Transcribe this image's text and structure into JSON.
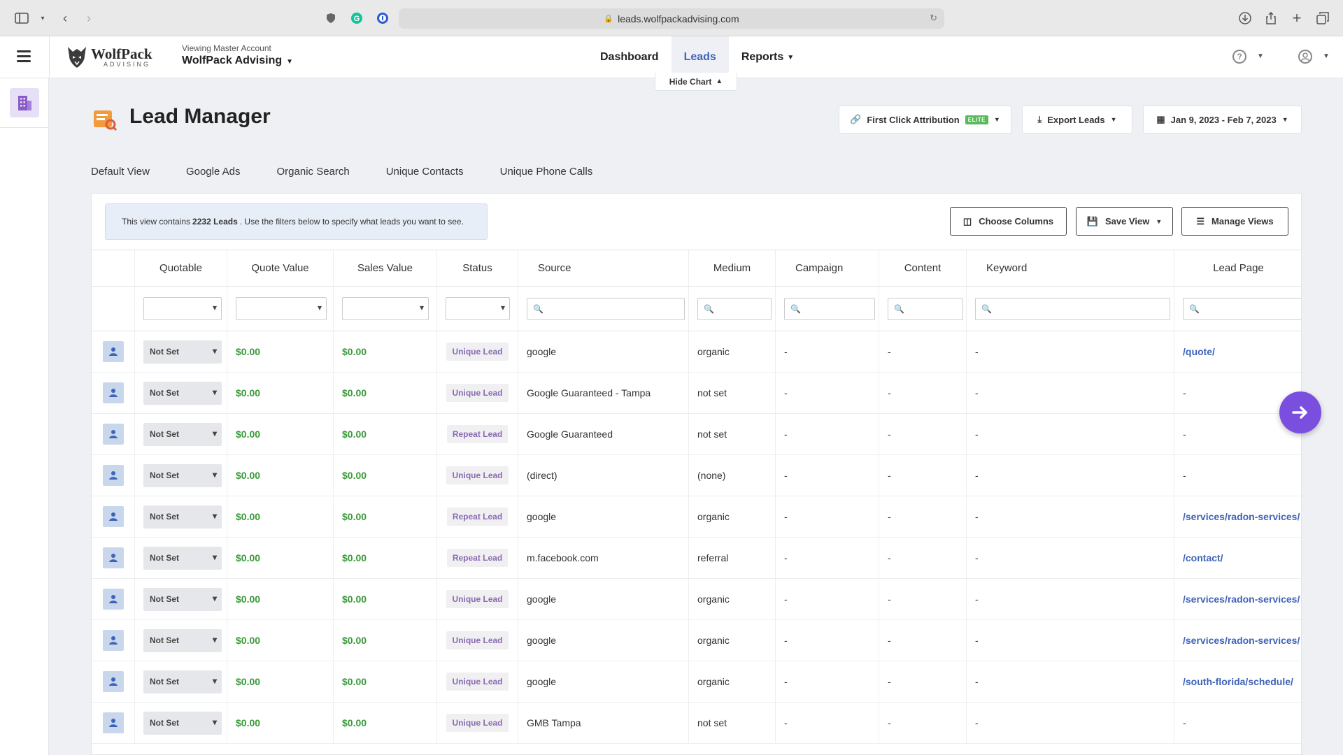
{
  "browser": {
    "url": "leads.wolfpackadvising.com"
  },
  "header": {
    "logo_primary": "WolfPack",
    "logo_secondary": "ADVISING",
    "account_label": "Viewing Master Account",
    "account_name": "WolfPack Advising",
    "nav": [
      {
        "label": "Dashboard",
        "active": false
      },
      {
        "label": "Leads",
        "active": true
      },
      {
        "label": "Reports",
        "active": false
      }
    ],
    "help_symbol": "?"
  },
  "hide_chart_label": "Hide Chart",
  "page_title": "Lead Manager",
  "toolbar": {
    "attribution_label": "First Click Attribution",
    "attribution_badge": "ELITE",
    "export_label": "Export Leads",
    "date_range": "Jan 9, 2023 - Feb 7, 2023"
  },
  "view_tabs": [
    "Default View",
    "Google Ads",
    "Organic Search",
    "Unique Contacts",
    "Unique Phone Calls"
  ],
  "info": {
    "prefix": "This view contains",
    "count": "2232 Leads",
    "suffix": ". Use the filters below to specify what leads you want to see."
  },
  "panel_buttons": {
    "choose_columns": "Choose Columns",
    "save_view": "Save View",
    "manage_views": "Manage Views"
  },
  "table": {
    "columns": [
      "Quotable",
      "Quote Value",
      "Sales Value",
      "Status",
      "Source",
      "Medium",
      "Campaign",
      "Content",
      "Keyword",
      "Lead Page"
    ],
    "rows": [
      {
        "quotable": "Not Set",
        "quote_value": "$0.00",
        "sales_value": "$0.00",
        "status": "Unique Lead",
        "source": "google",
        "medium": "organic",
        "campaign": "-",
        "content": "-",
        "keyword": "-",
        "lead_page": "/quote/"
      },
      {
        "quotable": "Not Set",
        "quote_value": "$0.00",
        "sales_value": "$0.00",
        "status": "Unique Lead",
        "source": "Google Guaranteed - Tampa",
        "medium": "not set",
        "campaign": "-",
        "content": "-",
        "keyword": "-",
        "lead_page": "-"
      },
      {
        "quotable": "Not Set",
        "quote_value": "$0.00",
        "sales_value": "$0.00",
        "status": "Repeat Lead",
        "source": "Google Guaranteed",
        "medium": "not set",
        "campaign": "-",
        "content": "-",
        "keyword": "-",
        "lead_page": "-"
      },
      {
        "quotable": "Not Set",
        "quote_value": "$0.00",
        "sales_value": "$0.00",
        "status": "Unique Lead",
        "source": "(direct)",
        "medium": "(none)",
        "campaign": "-",
        "content": "-",
        "keyword": "-",
        "lead_page": "-"
      },
      {
        "quotable": "Not Set",
        "quote_value": "$0.00",
        "sales_value": "$0.00",
        "status": "Repeat Lead",
        "source": "google",
        "medium": "organic",
        "campaign": "-",
        "content": "-",
        "keyword": "-",
        "lead_page": "/services/radon-services/"
      },
      {
        "quotable": "Not Set",
        "quote_value": "$0.00",
        "sales_value": "$0.00",
        "status": "Repeat Lead",
        "source": "m.facebook.com",
        "medium": "referral",
        "campaign": "-",
        "content": "-",
        "keyword": "-",
        "lead_page": "/contact/"
      },
      {
        "quotable": "Not Set",
        "quote_value": "$0.00",
        "sales_value": "$0.00",
        "status": "Unique Lead",
        "source": "google",
        "medium": "organic",
        "campaign": "-",
        "content": "-",
        "keyword": "-",
        "lead_page": "/services/radon-services/"
      },
      {
        "quotable": "Not Set",
        "quote_value": "$0.00",
        "sales_value": "$0.00",
        "status": "Unique Lead",
        "source": "google",
        "medium": "organic",
        "campaign": "-",
        "content": "-",
        "keyword": "-",
        "lead_page": "/services/radon-services/"
      },
      {
        "quotable": "Not Set",
        "quote_value": "$0.00",
        "sales_value": "$0.00",
        "status": "Unique Lead",
        "source": "google",
        "medium": "organic",
        "campaign": "-",
        "content": "-",
        "keyword": "-",
        "lead_page": "/south-florida/schedule/"
      },
      {
        "quotable": "Not Set",
        "quote_value": "$0.00",
        "sales_value": "$0.00",
        "status": "Unique Lead",
        "source": "GMB Tampa",
        "medium": "not set",
        "campaign": "-",
        "content": "-",
        "keyword": "-",
        "lead_page": "-"
      }
    ]
  },
  "colors": {
    "accent": "#3f63b8",
    "money": "#3a9a3a",
    "status_text": "#8a6bb0",
    "float_button": "#7a4fe0",
    "elite_badge": "#5cb85c"
  },
  "icons": {
    "sidebar": "building-icon",
    "float": "arrow-right-icon",
    "row_avatar": "user-icon"
  }
}
